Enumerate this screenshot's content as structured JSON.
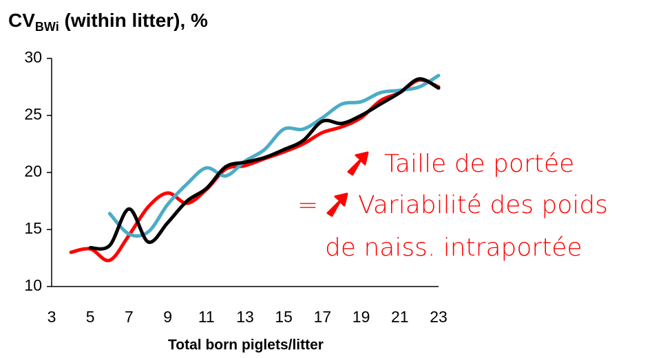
{
  "chart_data": {
    "type": "line",
    "title": {
      "text": "CV",
      "subscript": "BWi",
      "rest": " (within litter), %"
    },
    "x_label": "Total born piglets/litter",
    "annotations": [
      "Taille de portée",
      "=",
      "Variabilité des poids",
      "de naiss. intraportée"
    ],
    "xlim": [
      3,
      23
    ],
    "xticks": [
      3,
      5,
      7,
      9,
      11,
      13,
      15,
      17,
      19,
      21,
      23
    ],
    "ylim": [
      10,
      30
    ],
    "yticks": [
      10,
      15,
      20,
      25,
      30
    ],
    "series": [
      {
        "color": "#ff0000",
        "x": [
          4,
          5,
          6,
          7,
          8,
          9,
          10,
          11,
          12,
          13,
          14,
          15,
          16,
          17,
          18,
          19,
          20,
          21,
          22,
          23
        ],
        "values": [
          13.0,
          13.3,
          12.3,
          14.5,
          17.0,
          18.2,
          17.3,
          18.5,
          20.3,
          20.6,
          21.2,
          21.8,
          22.5,
          23.5,
          24.0,
          24.8,
          26.3,
          27.0,
          28.1,
          27.5
        ]
      },
      {
        "color": "#4bacc6",
        "x": [
          6,
          7,
          8,
          9,
          10,
          11,
          12,
          13,
          14,
          15,
          16,
          17,
          18,
          19,
          20,
          21,
          22,
          23
        ],
        "values": [
          16.4,
          14.6,
          14.8,
          17.2,
          19.0,
          20.4,
          19.7,
          21.0,
          22.0,
          23.8,
          23.8,
          24.8,
          26.0,
          26.2,
          27.0,
          27.2,
          27.5,
          28.5
        ]
      },
      {
        "color": "#000000",
        "x": [
          5,
          6,
          7,
          8,
          9,
          10,
          11,
          12,
          13,
          14,
          15,
          16,
          17,
          18,
          19,
          20,
          21,
          22,
          23
        ],
        "values": [
          13.4,
          13.6,
          16.8,
          13.9,
          15.6,
          17.5,
          18.6,
          20.5,
          20.9,
          21.3,
          22.0,
          22.8,
          24.5,
          24.3,
          25.0,
          26.0,
          27.0,
          28.2,
          27.4
        ]
      }
    ]
  }
}
